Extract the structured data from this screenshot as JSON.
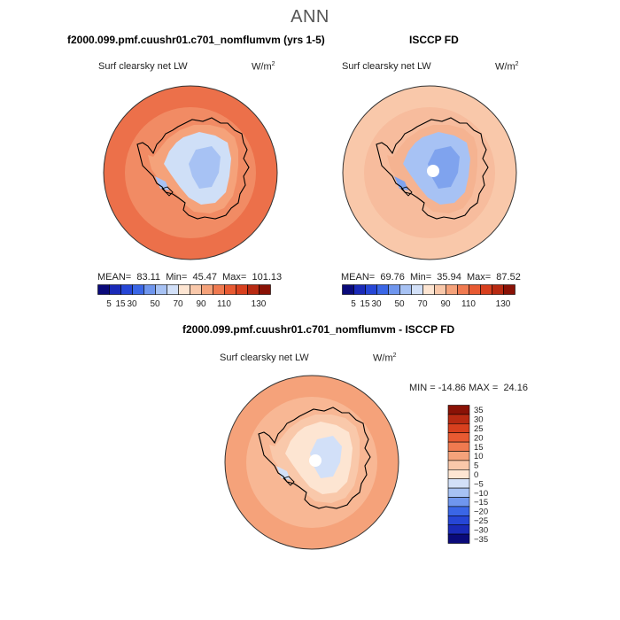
{
  "main_title": "ANN",
  "chart_data": [
    {
      "type": "heatmap",
      "title": "f2000.099.pmf.cuushr01.c701_nomflumvm (yrs 1-5)",
      "field": "Surf clearsky net LW",
      "units_base": "W/m",
      "units_exp": "2",
      "stats": {
        "mean_label": "MEAN=",
        "mean": "83.11",
        "min_label": "Min=",
        "min": "45.47",
        "max_label": "Max=",
        "max": "101.13"
      },
      "colorbar": {
        "ticks": [
          "5",
          "15",
          "30",
          "50",
          "70",
          "90",
          "110",
          "130"
        ],
        "colors": [
          "#0a0a7a",
          "#1a2ab8",
          "#2646d6",
          "#3a66e6",
          "#6f96ee",
          "#a7c2f4",
          "#d2e0f8",
          "#fde5d2",
          "#f9c8aa",
          "#f5a27a",
          "#f07a50",
          "#e85a32",
          "#d8401e",
          "#b82a12",
          "#8a1206"
        ]
      },
      "regions": {
        "ocean": "#ec704a",
        "coast": "#f5a27a",
        "plateau": "#cfdff7",
        "interior": "#a7c2f4"
      }
    },
    {
      "type": "heatmap",
      "title": "ISCCP FD",
      "field": "Surf clearsky net LW",
      "units_base": "W/m",
      "units_exp": "2",
      "stats": {
        "mean_label": "MEAN=",
        "mean": "69.76",
        "min_label": "Min=",
        "min": "35.94",
        "max_label": "Max=",
        "max": "87.52"
      },
      "colorbar": {
        "ticks": [
          "5",
          "15",
          "30",
          "50",
          "70",
          "90",
          "110",
          "130"
        ],
        "colors": [
          "#0a0a7a",
          "#1a2ab8",
          "#2646d6",
          "#3a66e6",
          "#6f96ee",
          "#a7c2f4",
          "#d2e0f8",
          "#fde5d2",
          "#f9c8aa",
          "#f5a27a",
          "#f07a50",
          "#e85a32",
          "#d8401e",
          "#b82a12",
          "#8a1206"
        ]
      },
      "regions": {
        "ocean": "#f9c8aa",
        "coast": "#f5b391",
        "plateau": "#a7c2f4",
        "interior": "#7fa3ee"
      }
    },
    {
      "type": "heatmap",
      "title": "f2000.099.pmf.cuushr01.c701_nomflumvm - ISCCP FD",
      "field": "Surf clearsky net LW",
      "units_base": "W/m",
      "units_exp": "2",
      "stats": {
        "min_label": "MIN =",
        "min": "-14.86",
        "max_label": "MAX =",
        "max": "24.16"
      },
      "colorbar": {
        "ticks": [
          "35",
          "30",
          "25",
          "20",
          "15",
          "10",
          "5",
          "0",
          "−5",
          "−10",
          "−15",
          "−20",
          "−25",
          "−30",
          "−35"
        ],
        "colors": [
          "#8a1206",
          "#b82a12",
          "#d8401e",
          "#e85a32",
          "#f07a50",
          "#f5a27a",
          "#f9c8aa",
          "#fde5d2",
          "#d2e0f8",
          "#a7c2f4",
          "#6f96ee",
          "#3a66e6",
          "#2646d6",
          "#1a2ab8",
          "#0a0a7a"
        ]
      },
      "regions": {
        "ocean": "#f5a27a",
        "coast": "#f9c8aa",
        "plateau": "#fde5d2",
        "interior": "#d2e0f8"
      }
    }
  ]
}
